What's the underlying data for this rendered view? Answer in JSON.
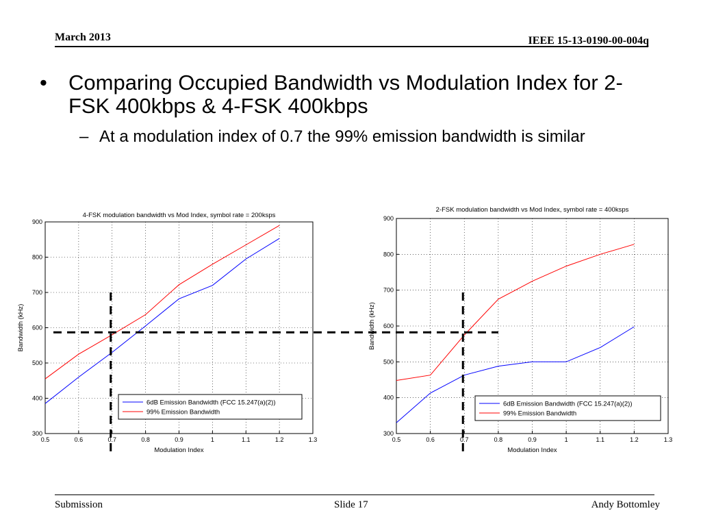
{
  "header": {
    "left": "March 2013",
    "right": "IEEE 15-13-0190-00-004q"
  },
  "bullets": {
    "main_mark": "•",
    "main": "Comparing Occupied Bandwidth vs Modulation Index for 2-FSK 400kbps & 4-FSK 400kbps",
    "sub_mark": "–",
    "sub": "At a modulation index of 0.7 the 99% emission bandwidth is similar"
  },
  "footer": {
    "left": "Submission",
    "center": "Slide 17",
    "right": "Andy Bottomley"
  },
  "colors": {
    "series_6db": "#0000ff",
    "series_99": "#ff0000",
    "grid": "#000000",
    "annotation": "#000000"
  },
  "chart_data": [
    {
      "type": "line",
      "title": "4-FSK modulation bandwidth vs Mod Index, symbol rate = 200ksps",
      "xlabel": "Modulation Index",
      "ylabel": "Bandwidth (kHz)",
      "xlim": [
        0.5,
        1.3
      ],
      "ylim": [
        300,
        900
      ],
      "xticks": [
        "0.5",
        "0.6",
        "0.7",
        "0.8",
        "0.9",
        "1",
        "1.1",
        "1.2",
        "1.3"
      ],
      "yticks": [
        "300",
        "400",
        "500",
        "600",
        "700",
        "800",
        "900"
      ],
      "grid": true,
      "legend": "lower-right",
      "x": [
        0.5,
        0.6,
        0.7,
        0.8,
        0.9,
        1.0,
        1.1,
        1.2
      ],
      "series": [
        {
          "name": "6dB Emission Bandwidth (FCC 15.247(a)(2))",
          "values": [
            385,
            460,
            530,
            605,
            682,
            720,
            795,
            853
          ]
        },
        {
          "name": "99% Emission Bandwidth",
          "values": [
            455,
            525,
            580,
            637,
            722,
            780,
            835,
            890
          ]
        }
      ]
    },
    {
      "type": "line",
      "title": "2-FSK modulation bandwidth vs Mod Index, symbol rate = 400ksps",
      "xlabel": "Modulation Index",
      "ylabel": "Bandwidth (kHz)",
      "xlim": [
        0.5,
        1.3
      ],
      "ylim": [
        300,
        900
      ],
      "xticks": [
        "0.5",
        "0.6",
        "0.7",
        "0.8",
        "0.9",
        "1",
        "1.1",
        "1.2",
        "1.3"
      ],
      "yticks": [
        "300",
        "400",
        "500",
        "600",
        "700",
        "800",
        "900"
      ],
      "grid": true,
      "legend": "lower-right",
      "x": [
        0.5,
        0.6,
        0.7,
        0.8,
        0.9,
        1.0,
        1.1,
        1.2
      ],
      "series": [
        {
          "name": "6dB Emission Bandwidth (FCC 15.247(a)(2))",
          "values": [
            330,
            413,
            463,
            488,
            500,
            500,
            540,
            598
          ]
        },
        {
          "name": "99% Emission Bandwidth",
          "values": [
            448,
            463,
            575,
            675,
            725,
            767,
            800,
            828
          ]
        }
      ]
    }
  ],
  "annotations": {
    "x_marker": 0.7,
    "y_marker": 587
  }
}
